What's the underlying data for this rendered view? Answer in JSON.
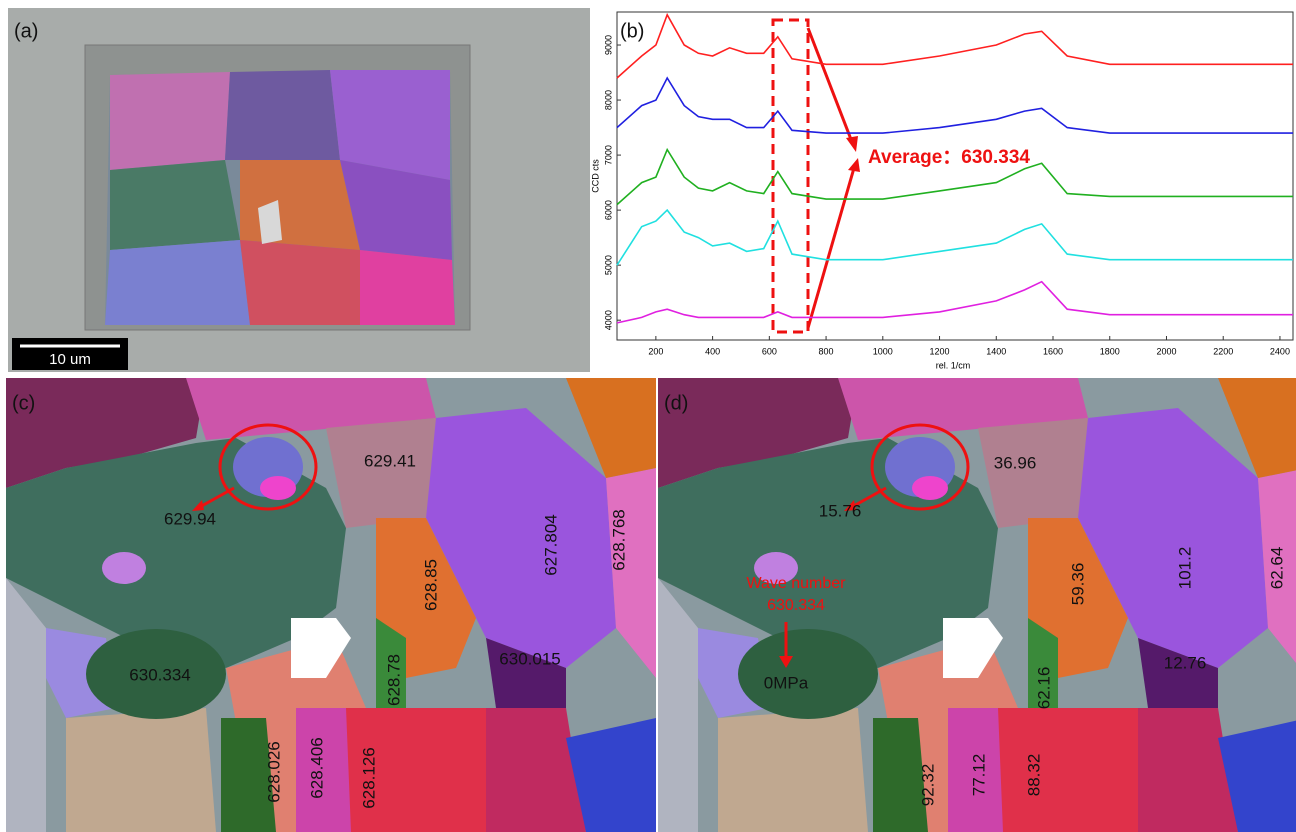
{
  "panel_a": {
    "label": "(a)",
    "scale_bar": "10 um"
  },
  "chart_data": {
    "type": "line",
    "label": "(b)",
    "ylabel": "CCD cts",
    "xlabel": "rel. 1/cm",
    "annotation": "Average：630.334",
    "x": [
      63,
      150,
      200,
      240,
      300,
      350,
      400,
      460,
      520,
      580,
      630,
      680,
      800,
      1000,
      1200,
      1400,
      1500,
      1560,
      1650,
      1800,
      2000,
      2200,
      2446
    ],
    "series": [
      {
        "color": "#ff2020",
        "values": [
          8400,
          8800,
          9000,
          9550,
          9000,
          8850,
          8800,
          8950,
          8850,
          8850,
          9150,
          8750,
          8650,
          8650,
          8800,
          9000,
          9200,
          9250,
          8800,
          8650,
          8650,
          8650,
          8650
        ]
      },
      {
        "color": "#2020e0",
        "values": [
          7500,
          7900,
          8000,
          8400,
          7900,
          7700,
          7650,
          7650,
          7500,
          7500,
          7800,
          7450,
          7400,
          7400,
          7500,
          7650,
          7800,
          7850,
          7500,
          7400,
          7400,
          7400,
          7400
        ]
      },
      {
        "color": "#20b020",
        "values": [
          6100,
          6500,
          6600,
          7100,
          6600,
          6400,
          6350,
          6500,
          6350,
          6300,
          6700,
          6300,
          6200,
          6200,
          6350,
          6500,
          6750,
          6850,
          6300,
          6250,
          6250,
          6250,
          6250
        ]
      },
      {
        "color": "#20e0e0",
        "values": [
          5000,
          5700,
          5800,
          6000,
          5600,
          5500,
          5350,
          5400,
          5250,
          5300,
          5800,
          5200,
          5100,
          5100,
          5250,
          5400,
          5650,
          5750,
          5200,
          5100,
          5100,
          5100,
          5100
        ]
      },
      {
        "color": "#e020e0",
        "values": [
          3950,
          4050,
          4150,
          4200,
          4100,
          4050,
          4050,
          4050,
          4050,
          4050,
          4150,
          4050,
          4050,
          4050,
          4150,
          4350,
          4550,
          4700,
          4200,
          4100,
          4100,
          4100,
          4100
        ]
      }
    ],
    "xlim": [
      63,
      2446
    ],
    "ylim": [
      3640,
      9600
    ],
    "xticks": [
      200,
      400,
      600,
      800,
      1000,
      1200,
      1400,
      1600,
      1800,
      2000,
      2200,
      2400
    ],
    "yticks": [
      4000,
      5000,
      6000,
      7000,
      8000,
      9000
    ]
  },
  "panel_c": {
    "label": "(c)",
    "values": [
      "629.94",
      "629.41",
      "627.804",
      "628.768",
      "628.85",
      "630.334",
      "630.015",
      "628.78",
      "628.026",
      "628.406",
      "628.126"
    ]
  },
  "panel_d": {
    "label": "(d)",
    "values": [
      "15.76",
      "36.96",
      "101.2",
      "62.64",
      "59.36",
      "0MPa",
      "12.76",
      "62.16",
      "92.32",
      "77.12",
      "88.32"
    ],
    "note": [
      "Wave number",
      "630.334"
    ]
  }
}
